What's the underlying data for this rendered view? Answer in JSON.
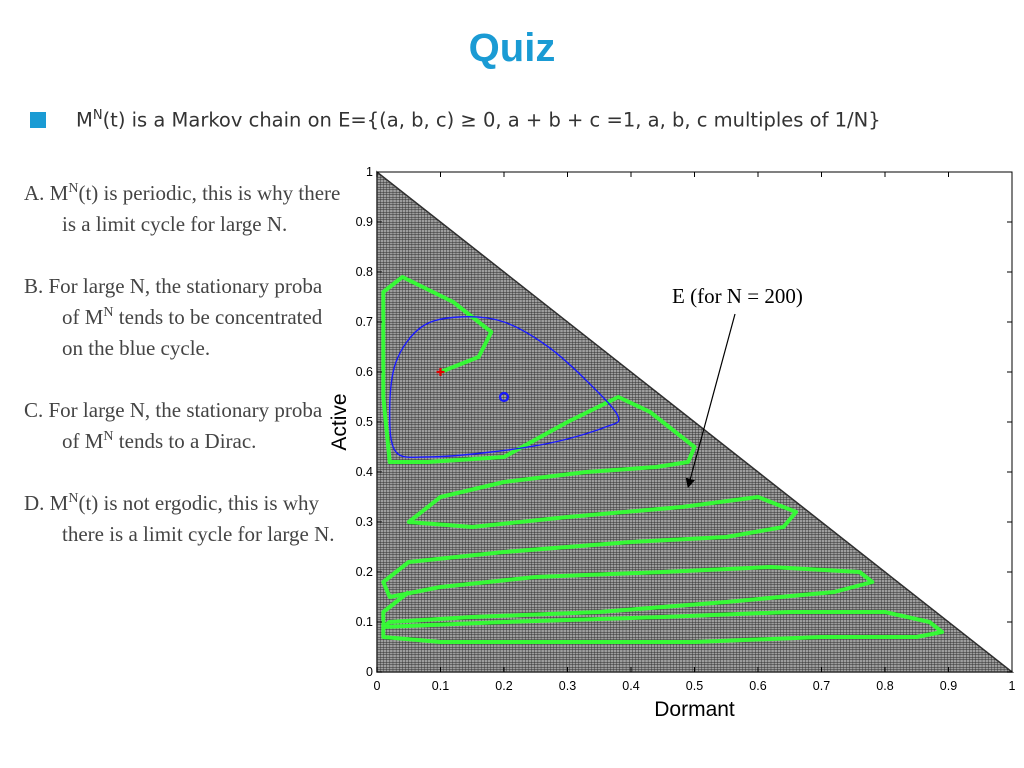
{
  "slide": {
    "title": "Quiz",
    "bullet": {
      "text_pre": "M",
      "text_sup": "N",
      "text_post": "(t) is a Markov chain on E={(a, b, c) ≥ 0, a + b + c =1,  a, b, c multiples of 1/N}"
    },
    "options": [
      {
        "pre": "A. M",
        "sup": "N",
        "post": "(t) is periodic, this is why there is a limit cycle for large N."
      },
      {
        "pre": "B. For large N, the stationary proba of M",
        "sup": "N",
        "post": " tends to be concentrated on the blue cycle."
      },
      {
        "pre": "C. For large N, the stationary proba of M",
        "sup": "N",
        "post": " tends to a Dirac."
      },
      {
        "pre": "D. M",
        "sup": "N",
        "post": "(t) is not ergodic, this is why there is a limit cycle for large N."
      }
    ]
  },
  "colors": {
    "title": "#1a9bd4",
    "bullet_square": "#1a9bd4",
    "grid_fill": "#9e9e9e",
    "grid_line": "#2f2f2f",
    "trajectory": "#33ff33",
    "cycle": "#1a1aff",
    "start_marker": "#e00000",
    "fixed_point": "#1a1aff",
    "arrow": "#000000"
  },
  "chart_data": {
    "type": "scatter",
    "title": "",
    "xlabel": "Dormant",
    "ylabel": "Active",
    "xlim": [
      0,
      1
    ],
    "ylim": [
      0,
      1
    ],
    "xticks": [
      "0",
      "0.1",
      "0.2",
      "0.3",
      "0.4",
      "0.5",
      "0.6",
      "0.7",
      "0.8",
      "0.9",
      "1"
    ],
    "yticks": [
      "0",
      "0.1",
      "0.2",
      "0.3",
      "0.4",
      "0.5",
      "0.6",
      "0.7",
      "0.8",
      "0.9",
      "1"
    ],
    "grid_N": 200,
    "annotation": {
      "text": "E (for N = 200)",
      "points_to": [
        0.49,
        0.37
      ]
    },
    "start_point": [
      0.1,
      0.6
    ],
    "fixed_point": [
      0.2,
      0.55
    ],
    "limit_cycle": [
      [
        0.03,
        0.44
      ],
      [
        0.02,
        0.52
      ],
      [
        0.03,
        0.62
      ],
      [
        0.07,
        0.69
      ],
      [
        0.13,
        0.71
      ],
      [
        0.2,
        0.7
      ],
      [
        0.27,
        0.65
      ],
      [
        0.34,
        0.57
      ],
      [
        0.38,
        0.51
      ],
      [
        0.36,
        0.49
      ],
      [
        0.28,
        0.46
      ],
      [
        0.18,
        0.44
      ],
      [
        0.08,
        0.43
      ],
      [
        0.03,
        0.44
      ]
    ],
    "trajectory": [
      [
        0.1,
        0.6
      ],
      [
        0.16,
        0.63
      ],
      [
        0.18,
        0.68
      ],
      [
        0.12,
        0.74
      ],
      [
        0.04,
        0.79
      ],
      [
        0.01,
        0.76
      ],
      [
        0.01,
        0.55
      ],
      [
        0.02,
        0.42
      ],
      [
        0.08,
        0.42
      ],
      [
        0.2,
        0.43
      ],
      [
        0.3,
        0.5
      ],
      [
        0.38,
        0.55
      ],
      [
        0.43,
        0.52
      ],
      [
        0.47,
        0.48
      ],
      [
        0.5,
        0.45
      ],
      [
        0.49,
        0.42
      ],
      [
        0.44,
        0.41
      ],
      [
        0.33,
        0.4
      ],
      [
        0.2,
        0.38
      ],
      [
        0.1,
        0.35
      ],
      [
        0.05,
        0.3
      ],
      [
        0.15,
        0.29
      ],
      [
        0.3,
        0.31
      ],
      [
        0.48,
        0.33
      ],
      [
        0.6,
        0.35
      ],
      [
        0.66,
        0.32
      ],
      [
        0.64,
        0.29
      ],
      [
        0.55,
        0.27
      ],
      [
        0.4,
        0.26
      ],
      [
        0.2,
        0.24
      ],
      [
        0.05,
        0.22
      ],
      [
        0.01,
        0.18
      ],
      [
        0.02,
        0.15
      ],
      [
        0.1,
        0.17
      ],
      [
        0.25,
        0.19
      ],
      [
        0.45,
        0.2
      ],
      [
        0.62,
        0.21
      ],
      [
        0.76,
        0.2
      ],
      [
        0.78,
        0.18
      ],
      [
        0.72,
        0.16
      ],
      [
        0.55,
        0.14
      ],
      [
        0.35,
        0.12
      ],
      [
        0.15,
        0.11
      ],
      [
        0.02,
        0.1
      ],
      [
        0.01,
        0.09
      ],
      [
        0.2,
        0.1
      ],
      [
        0.45,
        0.11
      ],
      [
        0.65,
        0.12
      ],
      [
        0.8,
        0.12
      ],
      [
        0.87,
        0.1
      ],
      [
        0.89,
        0.08
      ],
      [
        0.85,
        0.07
      ],
      [
        0.7,
        0.07
      ],
      [
        0.5,
        0.06
      ],
      [
        0.3,
        0.06
      ],
      [
        0.1,
        0.06
      ],
      [
        0.01,
        0.07
      ],
      [
        0.01,
        0.12
      ],
      [
        0.05,
        0.16
      ]
    ]
  }
}
